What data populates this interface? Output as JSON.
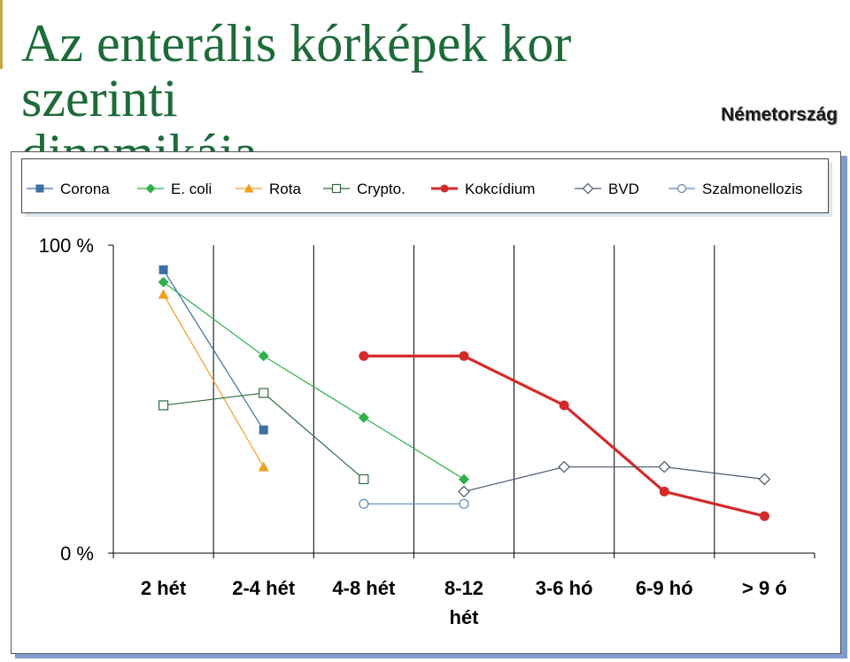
{
  "slide": {
    "title_line1": "Az enterális kórképek kor szerinti",
    "title_line2": "dinamikája",
    "country": "Németország"
  },
  "chart_data": {
    "type": "line",
    "title": "",
    "xlabel": "",
    "ylabel": "",
    "y_tick_labels": [
      "100 %",
      "0 %"
    ],
    "ylim": [
      0,
      100
    ],
    "grid": "vertical",
    "legend_position": "top",
    "categories": [
      [
        "2 hét"
      ],
      [
        "2-4 hét"
      ],
      [
        "4-8 hét"
      ],
      [
        "8-12",
        "hét"
      ],
      [
        "3-6 hó"
      ],
      [
        "6-9 hó"
      ],
      [
        "> 9 ó"
      ]
    ],
    "series": [
      {
        "name": "Corona",
        "color": "#3d6fa3",
        "marker": "square-filled",
        "width": 1.2,
        "values": [
          92,
          40,
          null,
          null,
          null,
          null,
          null
        ]
      },
      {
        "name": "E. coli",
        "color": "#2fb04a",
        "marker": "diamond-filled",
        "width": 1.2,
        "values": [
          88,
          64,
          44,
          24,
          null,
          null,
          null
        ]
      },
      {
        "name": "Rota",
        "color": "#f0a020",
        "marker": "triangle-filled",
        "width": 1.2,
        "values": [
          84,
          null,
          null,
          null,
          null,
          null,
          null
        ],
        "extra_points": [
          [
            1,
            28
          ]
        ]
      },
      {
        "name": "Crypto.",
        "color": "#2d6b3d",
        "marker": "square-open",
        "width": 1.2,
        "values": [
          48,
          52,
          24,
          null,
          null,
          null,
          null
        ]
      },
      {
        "name": "Kokcídium",
        "color": "#d42a2a",
        "marker": "circle-filled",
        "width": 3.2,
        "values": [
          null,
          null,
          64,
          64,
          48,
          20,
          12
        ]
      },
      {
        "name": "BVD",
        "color": "#4a5a6e",
        "marker": "diamond-open",
        "width": 1.2,
        "values": [
          null,
          null,
          null,
          20,
          28,
          28,
          24
        ]
      },
      {
        "name": "Szalmonellozis",
        "color": "#5f88b8",
        "marker": "circle-open",
        "width": 1.2,
        "values": [
          null,
          null,
          16,
          16,
          null,
          null,
          null
        ]
      }
    ]
  }
}
